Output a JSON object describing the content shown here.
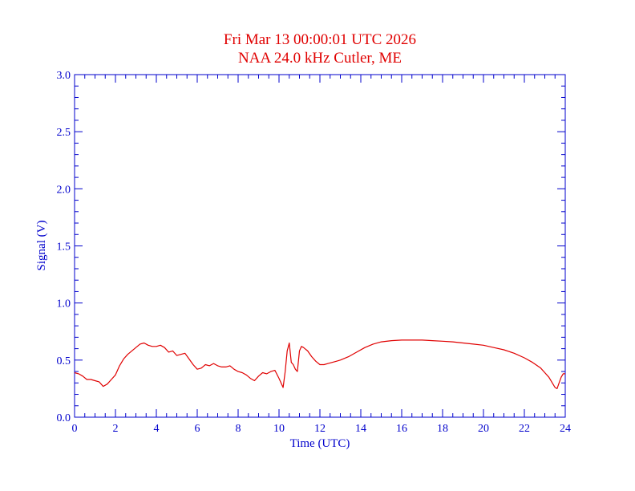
{
  "chart_data": {
    "type": "line",
    "title": "Fri Mar 13 00:00:01 UTC 2026",
    "subtitle": "NAA 24.0 kHz Cutler, ME",
    "xlabel": "Time (UTC)",
    "ylabel": "Signal (V)",
    "xlim": [
      0,
      24
    ],
    "ylim": [
      0.0,
      3.0
    ],
    "x_ticks": [
      0,
      2,
      4,
      6,
      8,
      10,
      12,
      14,
      16,
      18,
      20,
      22,
      24
    ],
    "x_tick_labels": [
      "0",
      "2",
      "4",
      "6",
      "8",
      "10",
      "12",
      "14",
      "16",
      "18",
      "20",
      "22",
      "24"
    ],
    "y_ticks": [
      0.0,
      0.5,
      1.0,
      1.5,
      2.0,
      2.5,
      3.0
    ],
    "y_tick_labels": [
      "0.0",
      "0.5",
      "1.0",
      "1.5",
      "2.0",
      "2.5",
      "3.0"
    ],
    "grid": false,
    "colors": {
      "axis": "#0000cc",
      "series": "#e00000",
      "title": "#e00000"
    },
    "series": [
      {
        "x": [
          0.0,
          0.2,
          0.4,
          0.6,
          0.8,
          1.0,
          1.2,
          1.4,
          1.6,
          1.8,
          2.0,
          2.2,
          2.4,
          2.6,
          2.8,
          3.0,
          3.2,
          3.4,
          3.6,
          3.8,
          4.0,
          4.2,
          4.4,
          4.6,
          4.8,
          5.0,
          5.2,
          5.4,
          5.6,
          5.8,
          6.0,
          6.2,
          6.4,
          6.6,
          6.8,
          7.0,
          7.2,
          7.4,
          7.6,
          7.8,
          8.0,
          8.2,
          8.4,
          8.6,
          8.8,
          9.0,
          9.2,
          9.4,
          9.6,
          9.8,
          10.0,
          10.2,
          10.3,
          10.4,
          10.5,
          10.6,
          10.7,
          10.8,
          10.9,
          11.0,
          11.1,
          11.2,
          11.4,
          11.6,
          11.8,
          12.0,
          12.2,
          12.4,
          12.6,
          12.8,
          13.0,
          13.4,
          13.8,
          14.2,
          14.6,
          15.0,
          15.5,
          16.0,
          16.5,
          17.0,
          17.5,
          18.0,
          18.5,
          19.0,
          19.5,
          20.0,
          20.5,
          21.0,
          21.5,
          22.0,
          22.4,
          22.8,
          23.0,
          23.2,
          23.4,
          23.5,
          23.6,
          23.7,
          23.8,
          23.9,
          24.0
        ],
        "y": [
          0.39,
          0.38,
          0.36,
          0.33,
          0.33,
          0.32,
          0.31,
          0.27,
          0.29,
          0.33,
          0.37,
          0.45,
          0.51,
          0.55,
          0.58,
          0.61,
          0.64,
          0.65,
          0.63,
          0.62,
          0.62,
          0.63,
          0.61,
          0.57,
          0.58,
          0.54,
          0.55,
          0.56,
          0.51,
          0.46,
          0.42,
          0.43,
          0.46,
          0.45,
          0.47,
          0.45,
          0.44,
          0.44,
          0.45,
          0.42,
          0.4,
          0.39,
          0.37,
          0.34,
          0.32,
          0.36,
          0.39,
          0.38,
          0.4,
          0.41,
          0.34,
          0.26,
          0.4,
          0.58,
          0.65,
          0.48,
          0.46,
          0.42,
          0.4,
          0.58,
          0.62,
          0.61,
          0.58,
          0.53,
          0.49,
          0.46,
          0.46,
          0.47,
          0.48,
          0.49,
          0.5,
          0.53,
          0.57,
          0.61,
          0.64,
          0.66,
          0.67,
          0.675,
          0.675,
          0.675,
          0.67,
          0.665,
          0.66,
          0.65,
          0.64,
          0.63,
          0.61,
          0.59,
          0.56,
          0.52,
          0.48,
          0.43,
          0.39,
          0.35,
          0.29,
          0.26,
          0.25,
          0.3,
          0.35,
          0.38,
          0.38
        ]
      }
    ]
  }
}
